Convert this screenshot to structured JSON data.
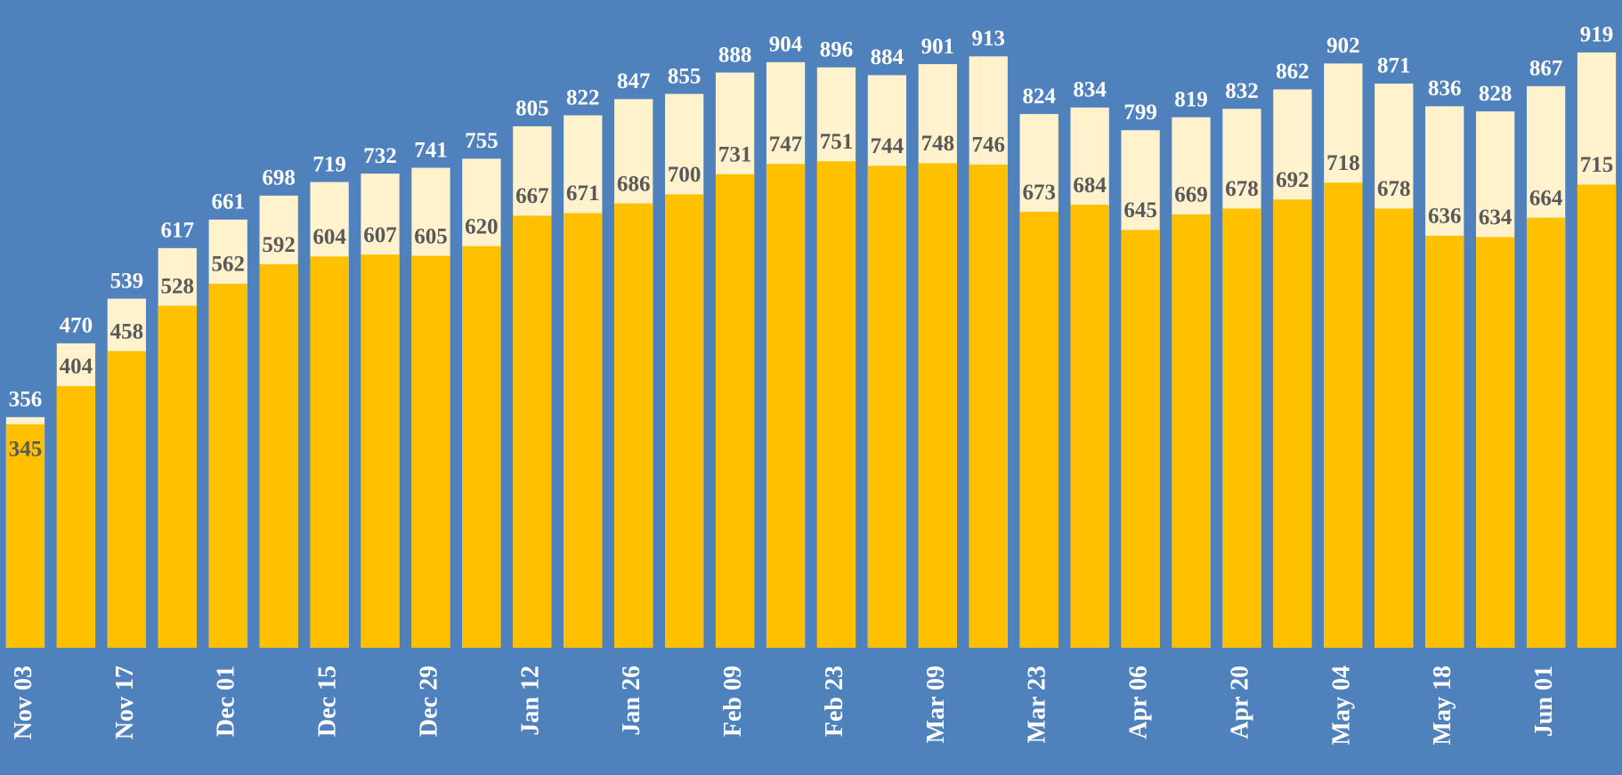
{
  "chart_data": {
    "type": "bar",
    "categories": [
      "Nov 03",
      null,
      "Nov 17",
      null,
      "Dec 01",
      null,
      "Dec 15",
      null,
      "Dec 29",
      null,
      "Jan 12",
      null,
      "Jan 26",
      null,
      "Feb 09",
      null,
      "Feb 23",
      null,
      "Mar 09",
      null,
      "Mar 23",
      null,
      "Apr 06",
      null,
      "Apr 20",
      null,
      "May 04",
      null,
      "May 18",
      null,
      "Jun 01",
      null
    ],
    "series": [
      {
        "color": "#fff2cc",
        "values": [
          356,
          470,
          539,
          617,
          661,
          698,
          719,
          732,
          741,
          755,
          805,
          822,
          847,
          855,
          888,
          904,
          896,
          884,
          901,
          913,
          824,
          834,
          799,
          819,
          832,
          862,
          902,
          871,
          836,
          828,
          867,
          919
        ]
      },
      {
        "color": "#ffc000",
        "values": [
          345,
          404,
          458,
          528,
          562,
          592,
          604,
          607,
          605,
          620,
          667,
          671,
          686,
          700,
          731,
          747,
          751,
          744,
          748,
          746,
          673,
          684,
          645,
          669,
          678,
          692,
          718,
          678,
          636,
          634,
          664,
          715
        ]
      }
    ],
    "ylim": [
      0,
      1000
    ]
  }
}
